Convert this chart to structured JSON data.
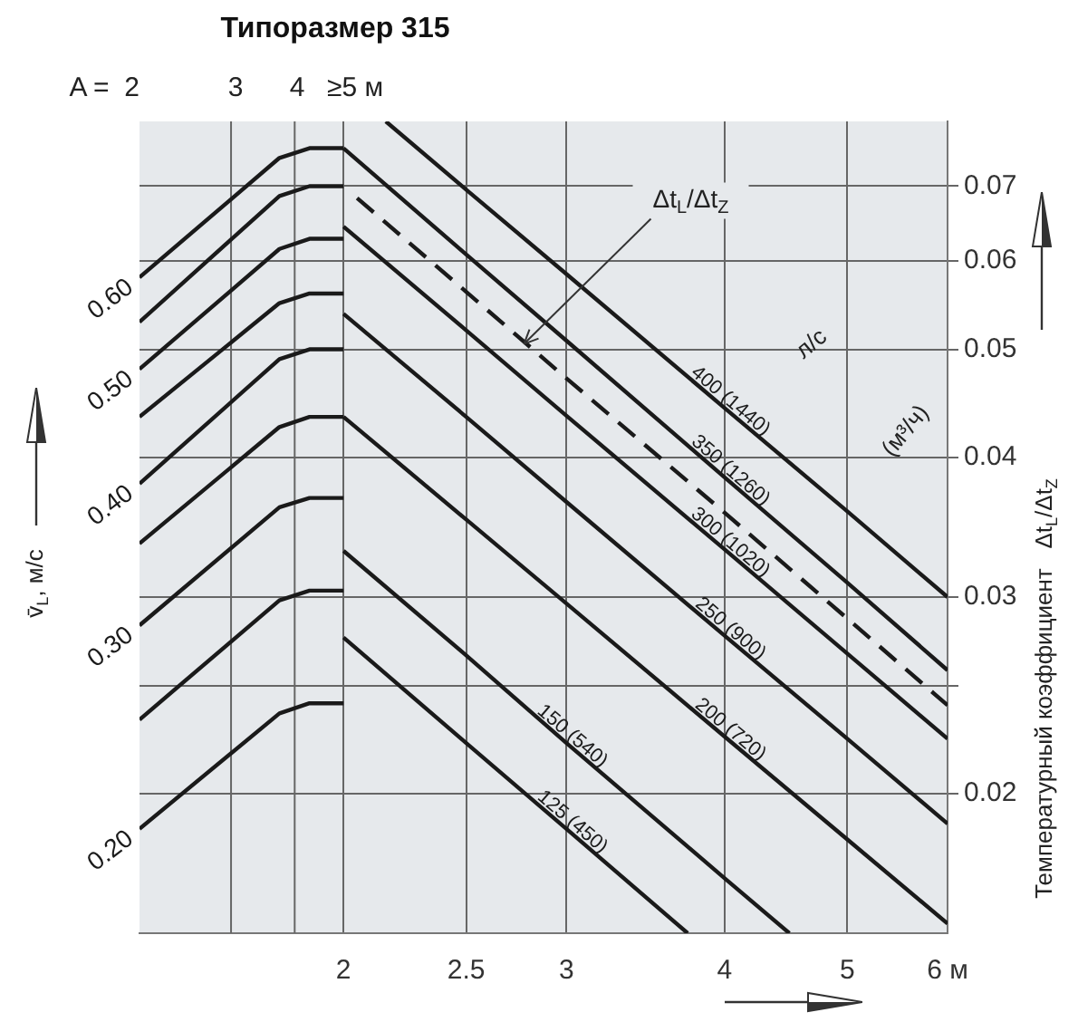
{
  "chart_data": {
    "type": "line",
    "title": "Типоразмер 315",
    "ylabel": "Температурный коэффициент   Δt$_{L}$/Δt$_{Z}$",
    "xlim": [
      1.38,
      6
    ],
    "xticks": [
      2,
      2.5,
      3,
      4,
      5,
      {
        "value": 6,
        "label": "6 м"
      }
    ],
    "ref_lines": [
      {
        "axis": "x",
        "value": 1.63,
        "color": "#666666"
      },
      {
        "axis": "x",
        "value": 1.83,
        "color": "#666666"
      }
    ],
    "ylim": [
      0.015,
      0.08
    ],
    "yticks": [
      0.02,
      {
        "value": 0.025,
        "label": null
      },
      0.03,
      0.04,
      0.05,
      0.06,
      0.07
    ],
    "log": "xy",
    "grid": true,
    "marker": "none",
    "annotations": [
      "л/с",
      "(м³/ч)",
      "v̄$_{L}$, м/с",
      "A =  2",
      "3",
      "4",
      "≥5 м",
      {
        "text": "Δt$_{L}$/Δt$_{Z}$",
        "x": 2.75,
        "y": 0.05
      }
    ],
    "series": [
      {
        "name": "0.60",
        "color": "#1a1a1a",
        "x": [
          1.38,
          1.78,
          1.88,
          2
        ],
        "values": [
          0.058,
          0.0742,
          0.0757,
          0.0757
        ]
      },
      {
        "color": "#1a1a1a",
        "x": [
          1.38,
          1.78,
          1.88,
          2
        ],
        "values": [
          0.0529,
          0.0686,
          0.07,
          0.07
        ]
      },
      {
        "name": "0.50",
        "color": "#1a1a1a",
        "x": [
          1.38,
          1.78,
          1.88,
          2
        ],
        "values": [
          0.048,
          0.0615,
          0.0628,
          0.0628
        ]
      },
      {
        "color": "#1a1a1a",
        "x": [
          1.38,
          1.78,
          1.88,
          2
        ],
        "values": [
          0.0435,
          0.055,
          0.0561,
          0.0561
        ]
      },
      {
        "name": "0.40",
        "color": "#1a1a1a",
        "x": [
          1.38,
          1.78,
          1.88,
          2
        ],
        "values": [
          0.0379,
          0.049,
          0.05,
          0.05
        ]
      },
      {
        "color": "#1a1a1a",
        "x": [
          1.38,
          1.78,
          1.88,
          2
        ],
        "values": [
          0.0335,
          0.0426,
          0.0435,
          0.0435
        ]
      },
      {
        "name": "0.30",
        "color": "#1a1a1a",
        "x": [
          1.38,
          1.78,
          1.88,
          2
        ],
        "values": [
          0.0283,
          0.0361,
          0.0368,
          0.0368
        ]
      },
      {
        "color": "#1a1a1a",
        "x": [
          1.38,
          1.78,
          1.88,
          2
        ],
        "values": [
          0.0233,
          0.0298,
          0.0304,
          0.0304
        ]
      },
      {
        "name": "0.20",
        "color": "#1a1a1a",
        "x": [
          1.38,
          1.78,
          1.88,
          2
        ],
        "values": [
          0.0186,
          0.0236,
          0.0241,
          0.0241
        ]
      },
      {
        "name": "400 (1440)",
        "color": "#1a1a1a",
        "x": [
          2.16,
          2.5,
          3,
          4,
          5,
          6
        ],
        "values": [
          0.08,
          0.0695,
          0.0584,
          0.0443,
          0.0358,
          0.03
        ]
      },
      {
        "name": "350 (1260)",
        "color": "#1a1a1a",
        "x": [
          2,
          2.5,
          3,
          4,
          5,
          6
        ],
        "values": [
          0.0757,
          0.0608,
          0.0509,
          0.0384,
          0.0309,
          0.0258
        ]
      },
      {
        "color": "#1a1a1a",
        "line_style": "dashed",
        "x": [
          2.05,
          2.5,
          3,
          4,
          5,
          6
        ],
        "values": [
          0.0683,
          0.0563,
          0.0471,
          0.0357,
          0.0287,
          0.024
        ]
      },
      {
        "name": "300 (1020)",
        "color": "#1a1a1a",
        "x": [
          2,
          2.5,
          3,
          4,
          5,
          6
        ],
        "values": [
          0.0644,
          0.052,
          0.0436,
          0.0331,
          0.0267,
          0.0224
        ]
      },
      {
        "name": "250 (900)",
        "color": "#1a1a1a",
        "x": [
          2,
          2.5,
          3,
          4,
          5,
          6
        ],
        "values": [
          0.0538,
          0.0435,
          0.0365,
          0.0277,
          0.0224,
          0.0188
        ]
      },
      {
        "name": "200 (720)",
        "color": "#1a1a1a",
        "x": [
          2,
          2.5,
          3,
          4,
          5,
          6
        ],
        "values": [
          0.0435,
          0.0352,
          0.0296,
          0.0225,
          0.0182,
          0.0153
        ]
      },
      {
        "name": "150 (540)",
        "color": "#1a1a1a",
        "x": [
          2,
          2.5,
          3,
          4,
          4.5
        ],
        "values": [
          0.033,
          0.0266,
          0.0222,
          0.0168,
          0.015
        ]
      },
      {
        "name": "125 (450)",
        "color": "#1a1a1a",
        "x": [
          2,
          2.5,
          3,
          3.74
        ],
        "values": [
          0.0276,
          0.0222,
          0.0186,
          0.015
        ]
      }
    ]
  }
}
